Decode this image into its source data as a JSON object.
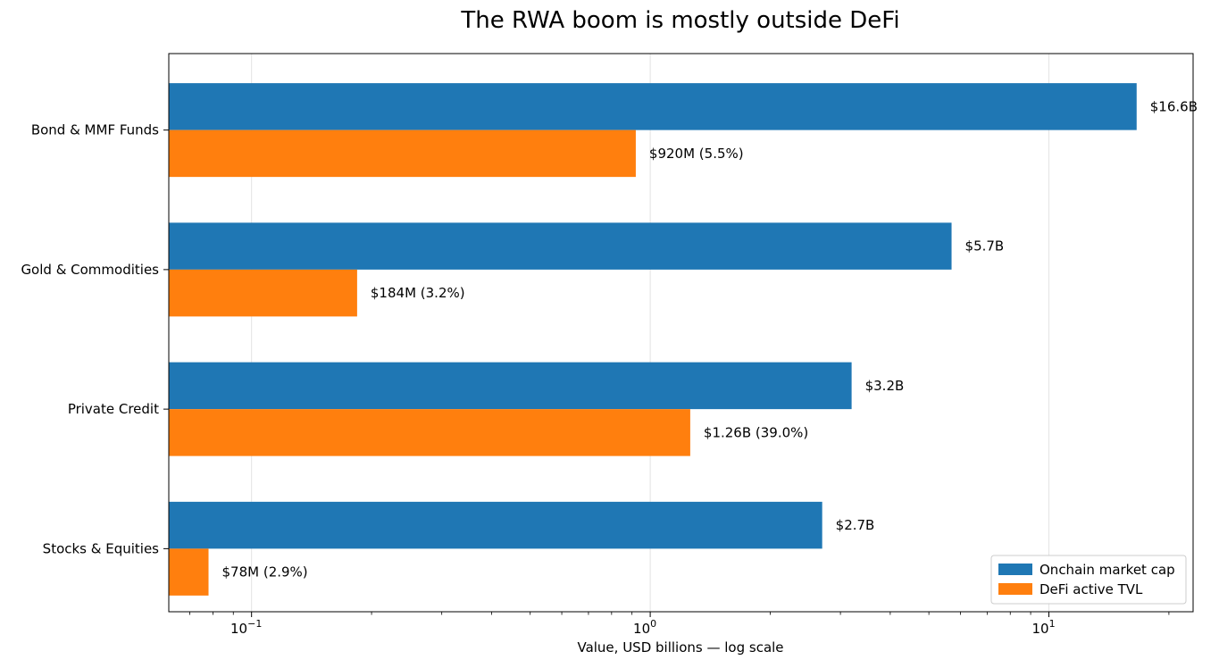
{
  "chart_data": {
    "type": "bar",
    "orientation": "horizontal",
    "title": "The RWA boom is mostly outside DeFi",
    "xlabel": "Value, USD billions — log scale",
    "ylabel": "",
    "x_scale": "log",
    "xlim": [
      0.062,
      23
    ],
    "grid": "vertical major",
    "categories": [
      "Bond & MMF Funds",
      "Gold & Commodities",
      "Private Credit",
      "Stocks & Equities"
    ],
    "series": [
      {
        "name": "Onchain market cap",
        "color": "#1f77b4",
        "values": [
          16.6,
          5.7,
          3.2,
          2.7
        ],
        "labels": [
          "$16.6B",
          "$5.7B",
          "$3.2B",
          "$2.7B"
        ]
      },
      {
        "name": "DeFi active TVL",
        "color": "#ff7f0e",
        "values": [
          0.92,
          0.184,
          1.26,
          0.078
        ],
        "labels": [
          "$920M (5.5%)",
          "$184M (3.2%)",
          "$1.26B (39.0%)",
          "$78M (2.9%)"
        ]
      }
    ],
    "ticks": [
      {
        "value": 0.1,
        "base": "10",
        "exp": "−1"
      },
      {
        "value": 1,
        "base": "10",
        "exp": "0"
      },
      {
        "value": 10,
        "base": "10",
        "exp": "1"
      }
    ],
    "legend_position": "lower-right"
  }
}
